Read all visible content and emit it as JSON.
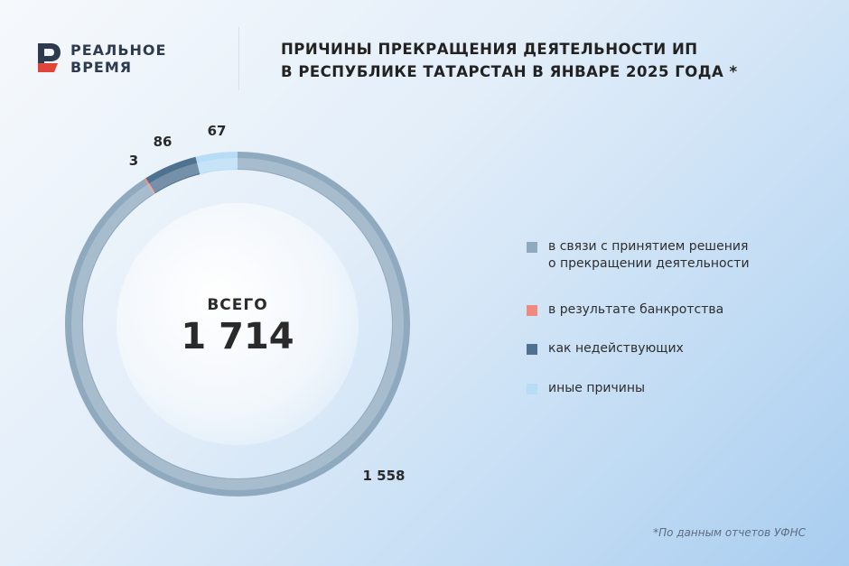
{
  "brand": {
    "line1": "РЕАЛЬНОЕ",
    "line2": "ВРЕМЯ",
    "logo_colors": {
      "dark": "#2e3b4e",
      "red": "#e0453a"
    }
  },
  "header": {
    "title_line1": "ПРИЧИНЫ ПРЕКРАЩЕНИЯ ДЕЯТЕЛЬНОСТИ ИП",
    "title_line2": "В РЕСПУБЛИКЕ ТАТАРСТАН В ЯНВАРЕ 2025 ГОДА *"
  },
  "chart_data": {
    "type": "pie",
    "style": "donut",
    "center_label": "ВСЕГО",
    "total": "1 714",
    "slices": [
      {
        "label": "в связи с принятием решения о прекращении деятельности",
        "legend_lines": [
          "в связи с принятием решения",
          "о прекращении деятельности"
        ],
        "value": 1558,
        "display": "1 558",
        "color": "#8fa9be"
      },
      {
        "label": "в результате банкротства",
        "legend_lines": [
          "в результате банкротства"
        ],
        "value": 3,
        "display": "3",
        "color": "#f08a80"
      },
      {
        "label": "как недействующих",
        "legend_lines": [
          "как недействующих"
        ],
        "value": 86,
        "display": "86",
        "color": "#4f7190"
      },
      {
        "label": "иные причины",
        "legend_lines": [
          "иные причины"
        ],
        "value": 67,
        "display": "67",
        "color": "#b6dcf6"
      }
    ]
  },
  "footnote": "*По данным отчетов УФНС"
}
